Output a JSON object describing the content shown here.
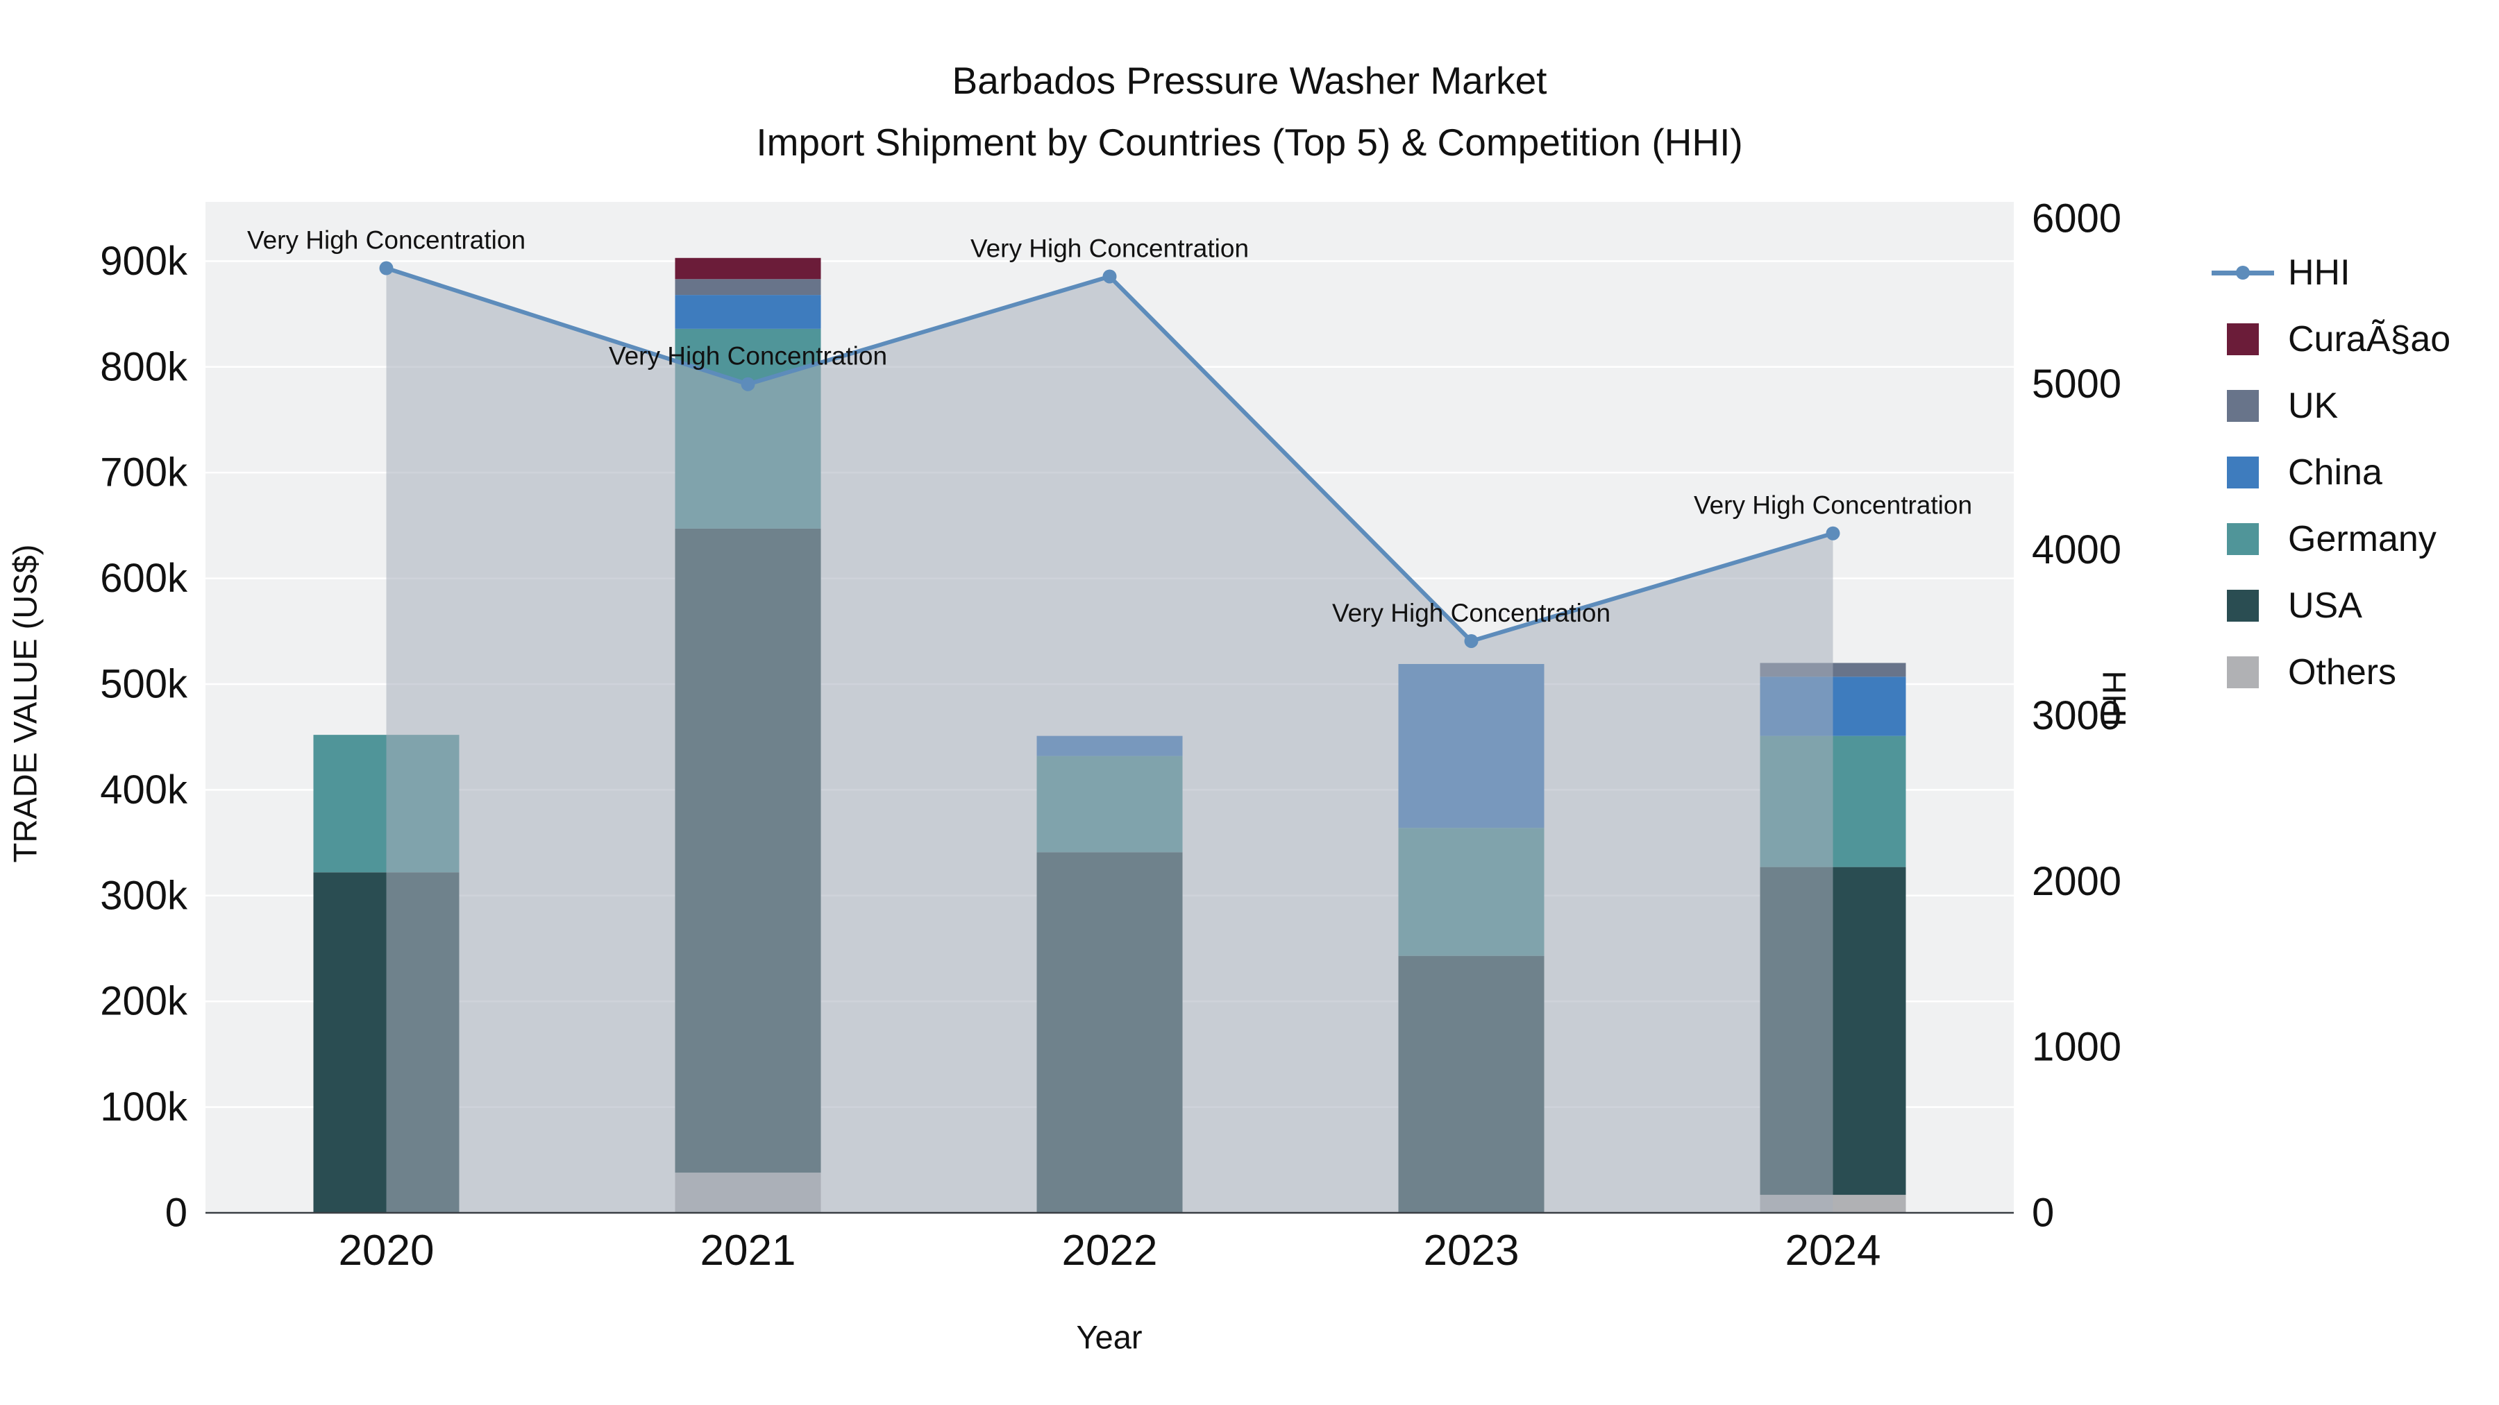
{
  "title": {
    "line1": "Barbados Pressure Washer Market",
    "line2": "Import Shipment by Countries (Top 5) & Competition (HHI)"
  },
  "chart_data": {
    "type": "combo-stacked-bar-line",
    "categories": [
      "2020",
      "2021",
      "2022",
      "2023",
      "2024"
    ],
    "bar_unit": "US$",
    "series": [
      {
        "name": "Others",
        "color": "#b0b1b4",
        "values": [
          0,
          38000,
          0,
          0,
          17000
        ]
      },
      {
        "name": "USA",
        "color": "#2a4d52",
        "values": [
          322000,
          609000,
          341000,
          243000,
          310000
        ]
      },
      {
        "name": "Germany",
        "color": "#509599",
        "values": [
          130000,
          189000,
          91000,
          121000,
          124000
        ]
      },
      {
        "name": "China",
        "color": "#3e7cbe",
        "values": [
          0,
          32000,
          19000,
          155000,
          56000
        ]
      },
      {
        "name": "UK",
        "color": "#68748a",
        "values": [
          0,
          15000,
          0,
          0,
          13000
        ]
      },
      {
        "name": "CuraÃ§ao",
        "color": "#6b1c39",
        "values": [
          0,
          20000,
          0,
          0,
          0
        ]
      }
    ],
    "line": {
      "name": "HHI",
      "color": "#5d8cbb",
      "fill_color": "#a7aebc",
      "fill_opacity": 0.55,
      "values": [
        5700,
        5000,
        5650,
        3450,
        4100
      ],
      "annotations": [
        "Very High Concentration",
        "Very High Concentration",
        "Very High Concentration",
        "Very High Concentration",
        "Very High Concentration"
      ]
    },
    "axes": {
      "left": {
        "title": "TRADE VALUE (US$)",
        "range": [
          0,
          956000
        ],
        "ticks": [
          {
            "label": "0",
            "value": 0
          },
          {
            "label": "100k",
            "value": 100000
          },
          {
            "label": "200k",
            "value": 200000
          },
          {
            "label": "300k",
            "value": 300000
          },
          {
            "label": "400k",
            "value": 400000
          },
          {
            "label": "500k",
            "value": 500000
          },
          {
            "label": "600k",
            "value": 600000
          },
          {
            "label": "700k",
            "value": 700000
          },
          {
            "label": "800k",
            "value": 800000
          },
          {
            "label": "900k",
            "value": 900000
          }
        ]
      },
      "right": {
        "title": "HHI",
        "range": [
          0,
          6100
        ],
        "ticks": [
          {
            "label": "0",
            "value": 0
          },
          {
            "label": "1000",
            "value": 1000
          },
          {
            "label": "2000",
            "value": 2000
          },
          {
            "label": "3000",
            "value": 3000
          },
          {
            "label": "4000",
            "value": 4000
          },
          {
            "label": "5000",
            "value": 5000
          },
          {
            "label": "6000",
            "value": 6000
          }
        ]
      },
      "x": {
        "title": "Year"
      }
    },
    "grid": "horizontal-white",
    "plot_background": "#f0f1f2",
    "legend_position": "right"
  },
  "legend": {
    "items": [
      {
        "label": "HHI",
        "type": "line",
        "color": "#5d8cbb"
      },
      {
        "label": "CuraÃ§ao",
        "type": "swatch",
        "color": "#6b1c39"
      },
      {
        "label": "UK",
        "type": "swatch",
        "color": "#68748a"
      },
      {
        "label": "China",
        "type": "swatch",
        "color": "#3e7cbe"
      },
      {
        "label": "Germany",
        "type": "swatch",
        "color": "#509599"
      },
      {
        "label": "USA",
        "type": "swatch",
        "color": "#2a4d52"
      },
      {
        "label": "Others",
        "type": "swatch",
        "color": "#b0b1b4"
      }
    ]
  }
}
